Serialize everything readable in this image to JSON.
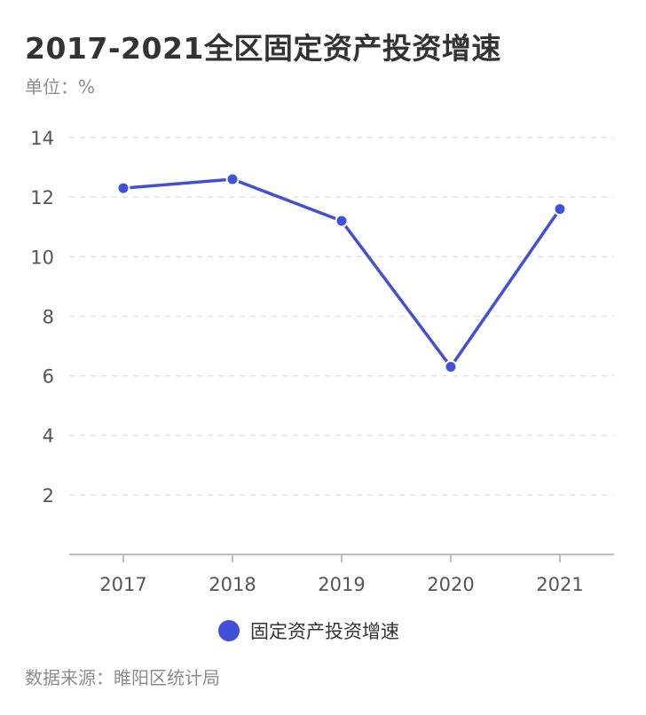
{
  "header": {
    "title": "2017-2021全区固定资产投资增速",
    "unit": "单位：%"
  },
  "footer": {
    "source": "数据来源：睢阳区统计局"
  },
  "chart_data": {
    "type": "line",
    "title": "2017-2021全区固定资产投资增速",
    "xlabel": "",
    "ylabel": "",
    "categories": [
      "2017",
      "2018",
      "2019",
      "2020",
      "2021"
    ],
    "series": [
      {
        "name": "固定资产投资增速",
        "values": [
          12.3,
          12.6,
          11.2,
          6.3,
          11.6
        ],
        "color": "#4150d6"
      }
    ],
    "ylim": [
      0,
      14
    ],
    "yticks": [
      2,
      4,
      6,
      8,
      10,
      12,
      14
    ],
    "grid": true,
    "legend": "bottom-center"
  }
}
